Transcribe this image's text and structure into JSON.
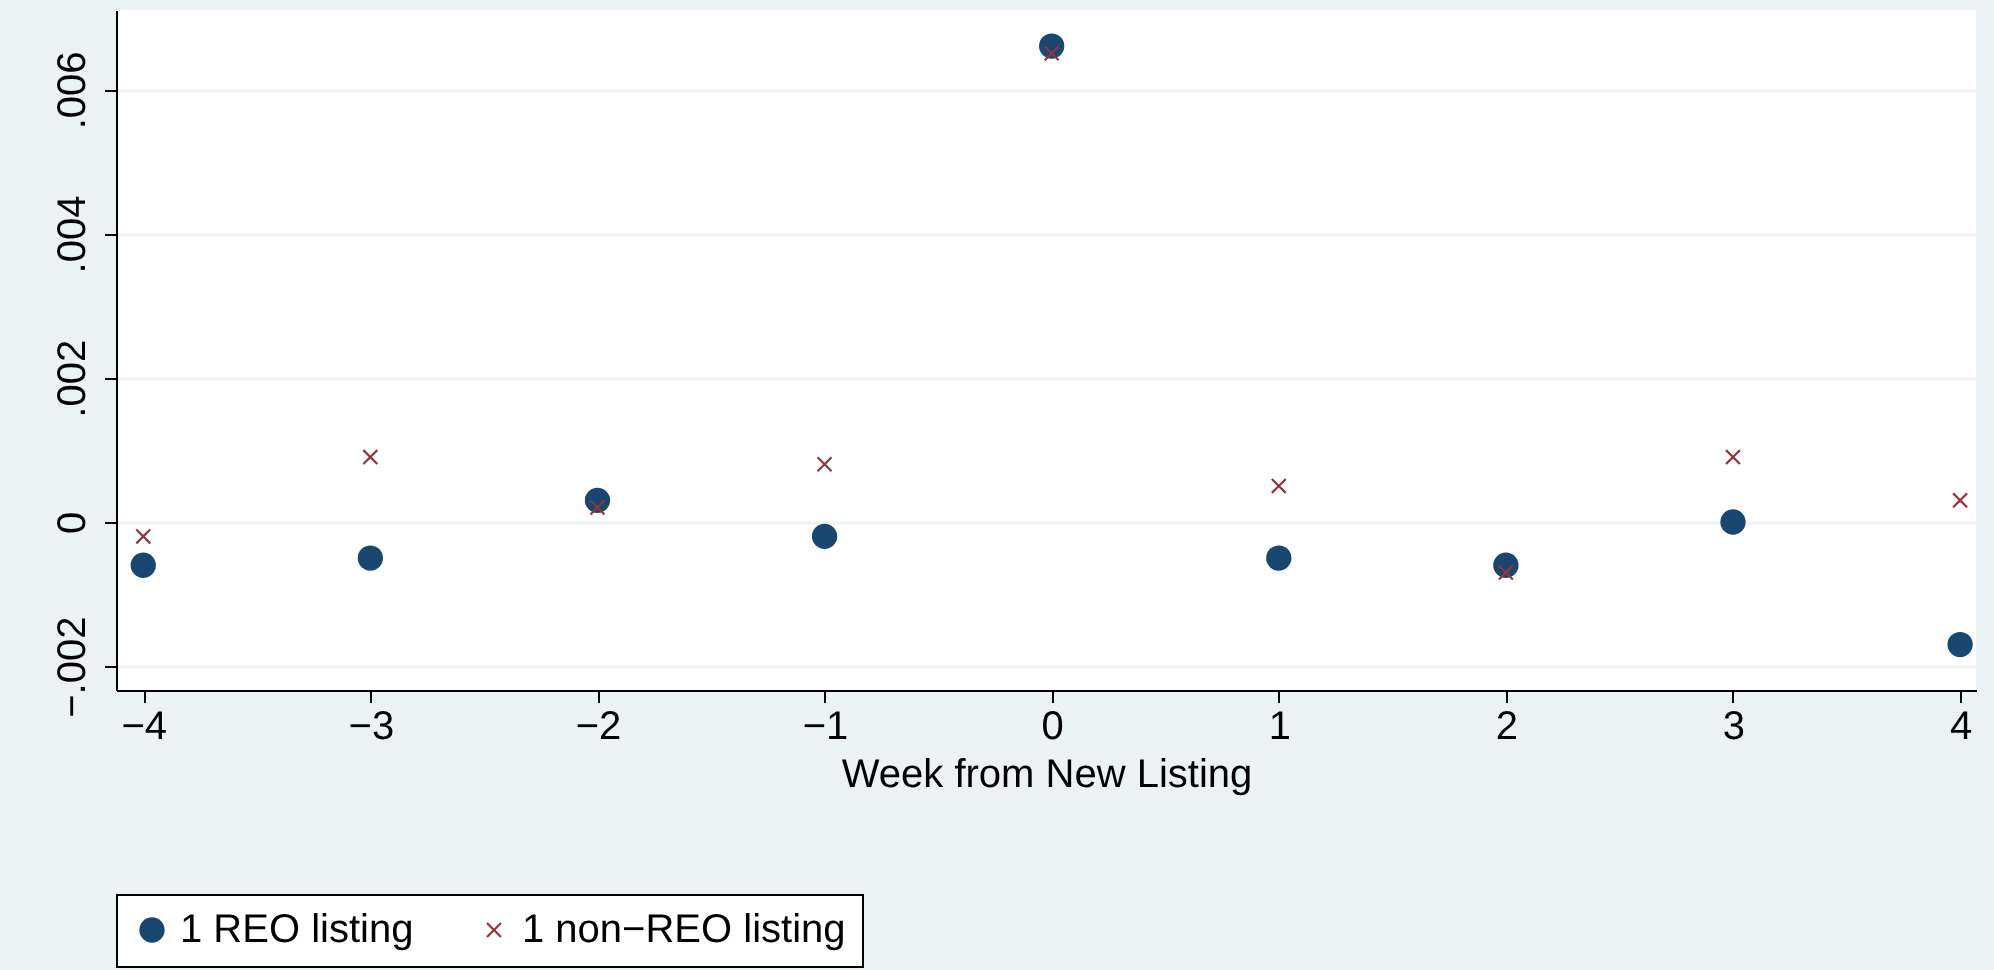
{
  "chart_data": {
    "type": "scatter",
    "xlabel": "Week from New Listing",
    "x": [
      -4,
      -3,
      -2,
      -1,
      0,
      1,
      2,
      3,
      4
    ],
    "series": [
      {
        "name": "1 REO listing",
        "color": "#1a476f",
        "marker": "circle",
        "values": [
          -0.0006,
          -0.0005,
          0.0003,
          -0.0002,
          0.0066,
          -0.0005,
          -0.0006,
          0,
          -0.0017
        ]
      },
      {
        "name": "1 non−REO listing",
        "color": "#90353b",
        "marker": "cross",
        "values": [
          -0.0002,
          0.0009,
          0.0002,
          0.0008,
          0.0065,
          0.0005,
          -0.0007,
          0.0009,
          0.0003
        ]
      }
    ],
    "xlim": [
      -4.12,
      4.07
    ],
    "xticks": [
      -4,
      -3,
      -2,
      -1,
      0,
      1,
      2,
      3,
      4
    ],
    "ylim": [
      -0.00233,
      0.0071
    ],
    "yticks": [
      {
        "value": -0.002,
        "label": "−.002"
      },
      {
        "value": 0,
        "label": "0"
      },
      {
        "value": 0.002,
        "label": ".002"
      },
      {
        "value": 0.004,
        "label": ".004"
      },
      {
        "value": 0.006,
        "label": ".006"
      }
    ],
    "grid": "y",
    "legend": "bottom"
  }
}
